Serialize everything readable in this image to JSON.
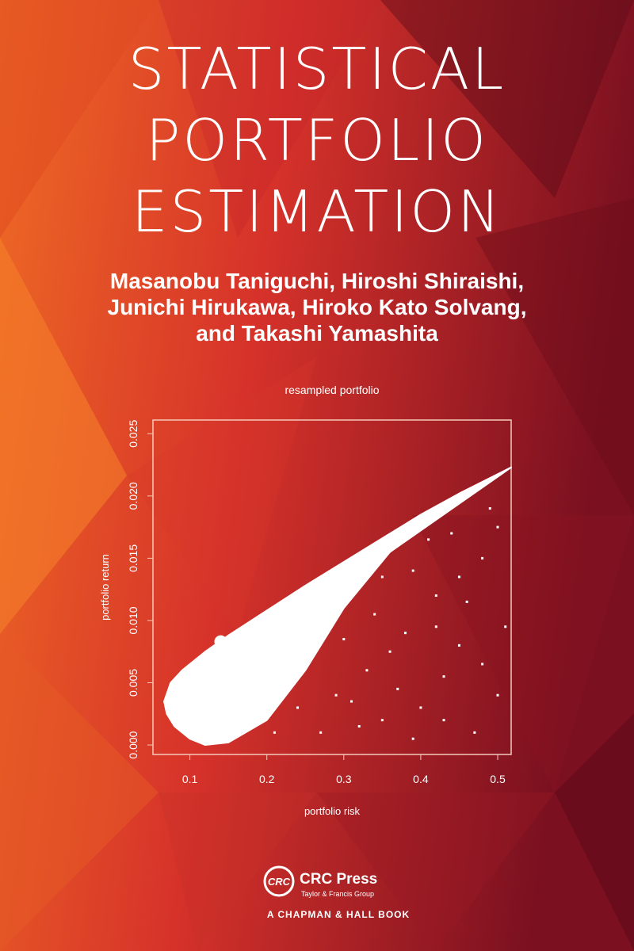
{
  "cover": {
    "title_lines": [
      "STATISTICAL",
      "PORTFOLIO",
      "ESTIMATION"
    ],
    "author_lines": [
      "Masanobu Taniguchi, Hiroshi Shiraishi,",
      "Junichi Hirukawa, Hiroko Kato Solvang,",
      "and Takashi Yamashita"
    ],
    "publisher": {
      "logo": "CRC",
      "name": "CRC Press",
      "group": "Taylor & Francis Group",
      "imprint": "A CHAPMAN & HALL BOOK"
    }
  },
  "chart_data": {
    "type": "scatter",
    "title": "resampled portfolio",
    "x_label": "portfolio risk",
    "y_label": "portfolio return",
    "xlim": [
      0.052,
      0.5175
    ],
    "ylim": [
      -0.00076,
      0.0261
    ],
    "xticks": [
      0.1,
      0.2,
      0.3,
      0.4,
      0.5
    ],
    "yticks": [
      {
        "value": 0,
        "label": "0.000"
      },
      {
        "value": 0.005,
        "label": "0.005"
      },
      {
        "value": 0.01,
        "label": "0.010"
      },
      {
        "value": 0.015,
        "label": "0.015"
      },
      {
        "value": 0.02,
        "label": "0.020"
      },
      {
        "value": 0.025,
        "label": "0.025"
      }
    ],
    "color": "#ffffff",
    "region": {
      "x": [
        0.0665,
        0.075,
        0.09,
        0.12,
        0.15,
        0.2,
        0.25,
        0.3,
        0.35,
        0.4,
        0.45,
        0.5175,
        0.36,
        0.3,
        0.25,
        0.2,
        0.15,
        0.12,
        0.1,
        0.08,
        0.07
      ],
      "values": [
        0.0035,
        0.005,
        0.006,
        0.0075,
        0.0088,
        0.0108,
        0.0128,
        0.0147,
        0.0166,
        0.0185,
        0.0202,
        0.0223,
        0.0155,
        0.011,
        0.006,
        0.002,
        0.0002,
        0,
        0.0005,
        0.0015,
        0.0025
      ]
    },
    "points": {
      "x": [
        0.42,
        0.45,
        0.48,
        0.5,
        0.47,
        0.44,
        0.4,
        0.38,
        0.35,
        0.33,
        0.31,
        0.29,
        0.27,
        0.26,
        0.24,
        0.22,
        0.21,
        0.39,
        0.43,
        0.46,
        0.49,
        0.51,
        0.37,
        0.34,
        0.32,
        0.41,
        0.36,
        0.48,
        0.5,
        0.45,
        0.43,
        0.39,
        0.3,
        0.28,
        0.25,
        0.23,
        0.47,
        0.42,
        0.35,
        0.31
      ],
      "values": [
        0.012,
        0.008,
        0.015,
        0.004,
        0.001,
        0.017,
        0.003,
        0.009,
        0.002,
        0.006,
        0.012,
        0.004,
        0.001,
        0.009,
        0.003,
        0.007,
        0.001,
        0.014,
        0.0055,
        0.0115,
        0.019,
        0.0095,
        0.0045,
        0.0105,
        0.0015,
        0.0165,
        0.0075,
        0.0065,
        0.0175,
        0.0135,
        0.002,
        0.0005,
        0.0085,
        0.0125,
        0.011,
        0.0095,
        0.0205,
        0.0095,
        0.0135,
        0.0035
      ]
    },
    "highlight": {
      "x": 0.14,
      "y": 0.0083
    }
  }
}
